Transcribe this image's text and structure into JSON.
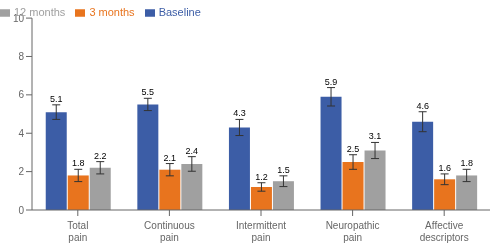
{
  "chart_data": {
    "type": "bar",
    "categories": [
      "Total pain",
      "Continuous pain",
      "Intermittent pain",
      "Neuropathic pain",
      "Affective descriptors"
    ],
    "series": [
      {
        "name": "Baseline",
        "color": "#3c5da6",
        "values": [
          5.1,
          5.5,
          4.3,
          5.9,
          4.6
        ],
        "errors": [
          0.38,
          0.32,
          0.42,
          0.48,
          0.52
        ]
      },
      {
        "name": "3 months",
        "color": "#e8741e",
        "values": [
          1.8,
          2.1,
          1.2,
          2.5,
          1.6
        ],
        "errors": [
          0.32,
          0.32,
          0.22,
          0.38,
          0.28
        ]
      },
      {
        "name": "12 months",
        "color": "#a0a0a0",
        "values": [
          2.2,
          2.4,
          1.5,
          3.1,
          1.8
        ],
        "errors": [
          0.32,
          0.38,
          0.28,
          0.42,
          0.32
        ]
      }
    ],
    "ylim": [
      0,
      10
    ],
    "yticks": [
      0,
      2,
      4,
      6,
      8,
      10
    ],
    "grid": false,
    "legend": "upper left",
    "data_labels": true
  }
}
